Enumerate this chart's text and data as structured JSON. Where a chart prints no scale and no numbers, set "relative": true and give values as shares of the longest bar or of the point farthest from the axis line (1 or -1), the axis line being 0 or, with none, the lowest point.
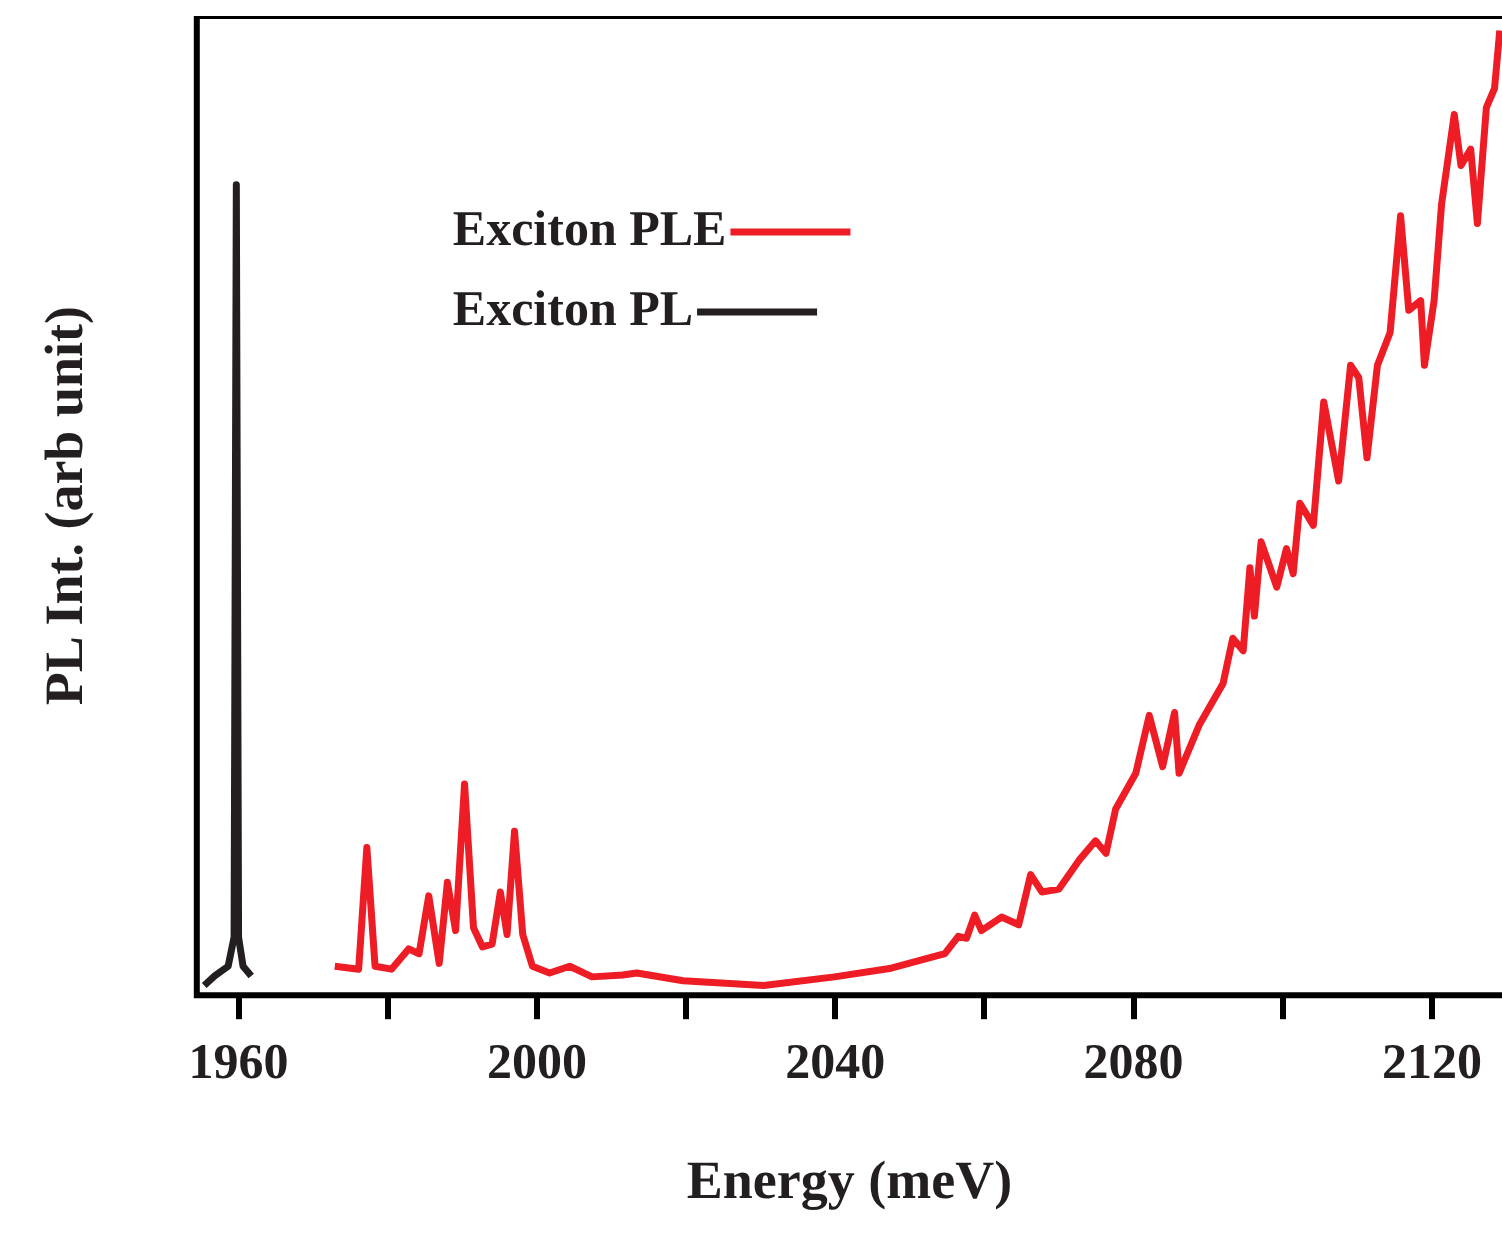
{
  "chart_data": {
    "type": "line",
    "xlabel": "Energy (meV)",
    "ylabel": "PL Int. (arb unit)",
    "relative": true,
    "xlim": [
      1954.4,
      2129.4
    ],
    "xticks": [
      1960,
      {
        "value": 1980,
        "label": null
      },
      2000,
      {
        "value": 2020,
        "label": null
      },
      2040,
      {
        "value": 2060,
        "label": null
      },
      2080,
      {
        "value": 2100,
        "label": null
      },
      2120
    ],
    "legend": "top left",
    "grid": false,
    "marker": "none",
    "line_style": "solid",
    "series": [
      {
        "name": "Exciton PLE",
        "color": "#ee1c25",
        "x": [
          1972.9,
          1976.1,
          1977.2,
          1978.3,
          1980.5,
          1982.8,
          1984.2,
          1985.5,
          1986.9,
          1988.0,
          1989.1,
          1990.3,
          1991.5,
          1992.7,
          1994.0,
          1995.1,
          1996.0,
          1997.0,
          1998.1,
          1999.4,
          2001.7,
          2004.4,
          2007.4,
          2011.5,
          2013.4,
          2019.6,
          2030.4,
          2039.9,
          2047.5,
          2054.7,
          2056.5,
          2057.6,
          2058.7,
          2059.6,
          2062.3,
          2064.6,
          2066.2,
          2067.7,
          2070.0,
          2072.7,
          2074.9,
          2076.3,
          2077.6,
          2080.3,
          2082.1,
          2083.9,
          2085.5,
          2086.1,
          2088.8,
          2092.0,
          2093.3,
          2094.7,
          2095.6,
          2096.2,
          2097.1,
          2099.2,
          2100.5,
          2101.4,
          2102.3,
          2104.1,
          2105.5,
          2107.5,
          2109.1,
          2110.2,
          2111.3,
          2112.7,
          2114.4,
          2115.8,
          2116.9,
          2118.5,
          2119.0,
          2120.3,
          2121.3,
          2123.0,
          2123.9,
          2125.2,
          2126.1,
          2127.3,
          2128.4,
          2129.1
        ],
        "values": [
          0.03,
          0.027,
          0.153,
          0.03,
          0.027,
          0.048,
          0.043,
          0.103,
          0.033,
          0.117,
          0.067,
          0.219,
          0.07,
          0.05,
          0.053,
          0.107,
          0.063,
          0.17,
          0.063,
          0.03,
          0.023,
          0.03,
          0.019,
          0.021,
          0.023,
          0.015,
          0.01,
          0.019,
          0.028,
          0.043,
          0.061,
          0.059,
          0.083,
          0.067,
          0.081,
          0.073,
          0.125,
          0.107,
          0.11,
          0.14,
          0.16,
          0.147,
          0.193,
          0.23,
          0.29,
          0.237,
          0.293,
          0.23,
          0.28,
          0.323,
          0.37,
          0.357,
          0.443,
          0.393,
          0.47,
          0.423,
          0.463,
          0.437,
          0.51,
          0.487,
          0.615,
          0.533,
          0.653,
          0.64,
          0.557,
          0.653,
          0.687,
          0.808,
          0.71,
          0.72,
          0.653,
          0.72,
          0.82,
          0.913,
          0.86,
          0.877,
          0.8,
          0.92,
          0.94,
          1.0
        ]
      },
      {
        "name": "Exciton PL",
        "color": "#231f20",
        "x": [
          1955.4,
          1956.8,
          1958.6,
          1959.4,
          1959.7,
          1960.0,
          1960.6,
          1961.7
        ],
        "values": [
          0.01,
          0.02,
          0.03,
          0.06,
          0.84,
          0.06,
          0.03,
          0.02
        ]
      }
    ]
  }
}
